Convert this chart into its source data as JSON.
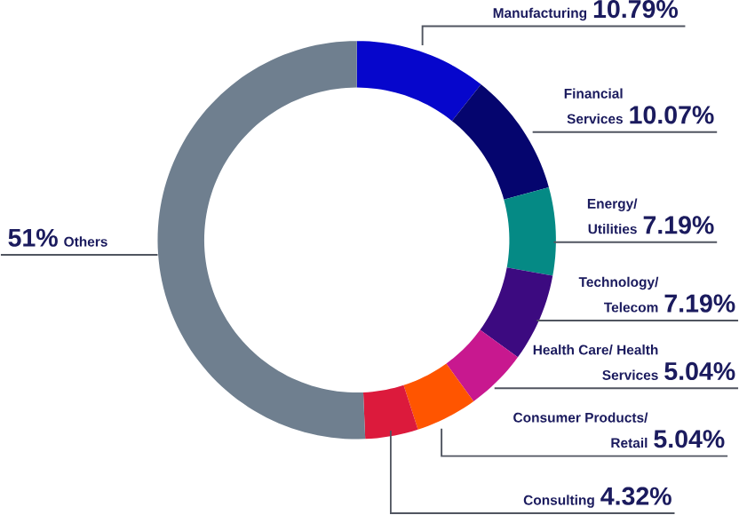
{
  "chart_data": {
    "type": "donut",
    "categories": [
      "Manufacturing",
      "Financial Services",
      "Energy/ Utilities",
      "Technology/ Telecom",
      "Health Care/ Health Services",
      "Consumer Products/ Retail",
      "Consulting",
      "Others"
    ],
    "values": [
      10.79,
      10.07,
      7.19,
      7.19,
      5.04,
      5.04,
      4.32,
      51
    ],
    "colors": [
      "#0606cc",
      "#05056e",
      "#058a85",
      "#3c0a80",
      "#c8188f",
      "#ff5500",
      "#dc1a3c",
      "#6f7f8f"
    ],
    "value_labels": [
      "10.79%",
      "10.07%",
      "7.19%",
      "7.19%",
      "5.04%",
      "5.04%",
      "4.32%",
      "51%"
    ]
  }
}
